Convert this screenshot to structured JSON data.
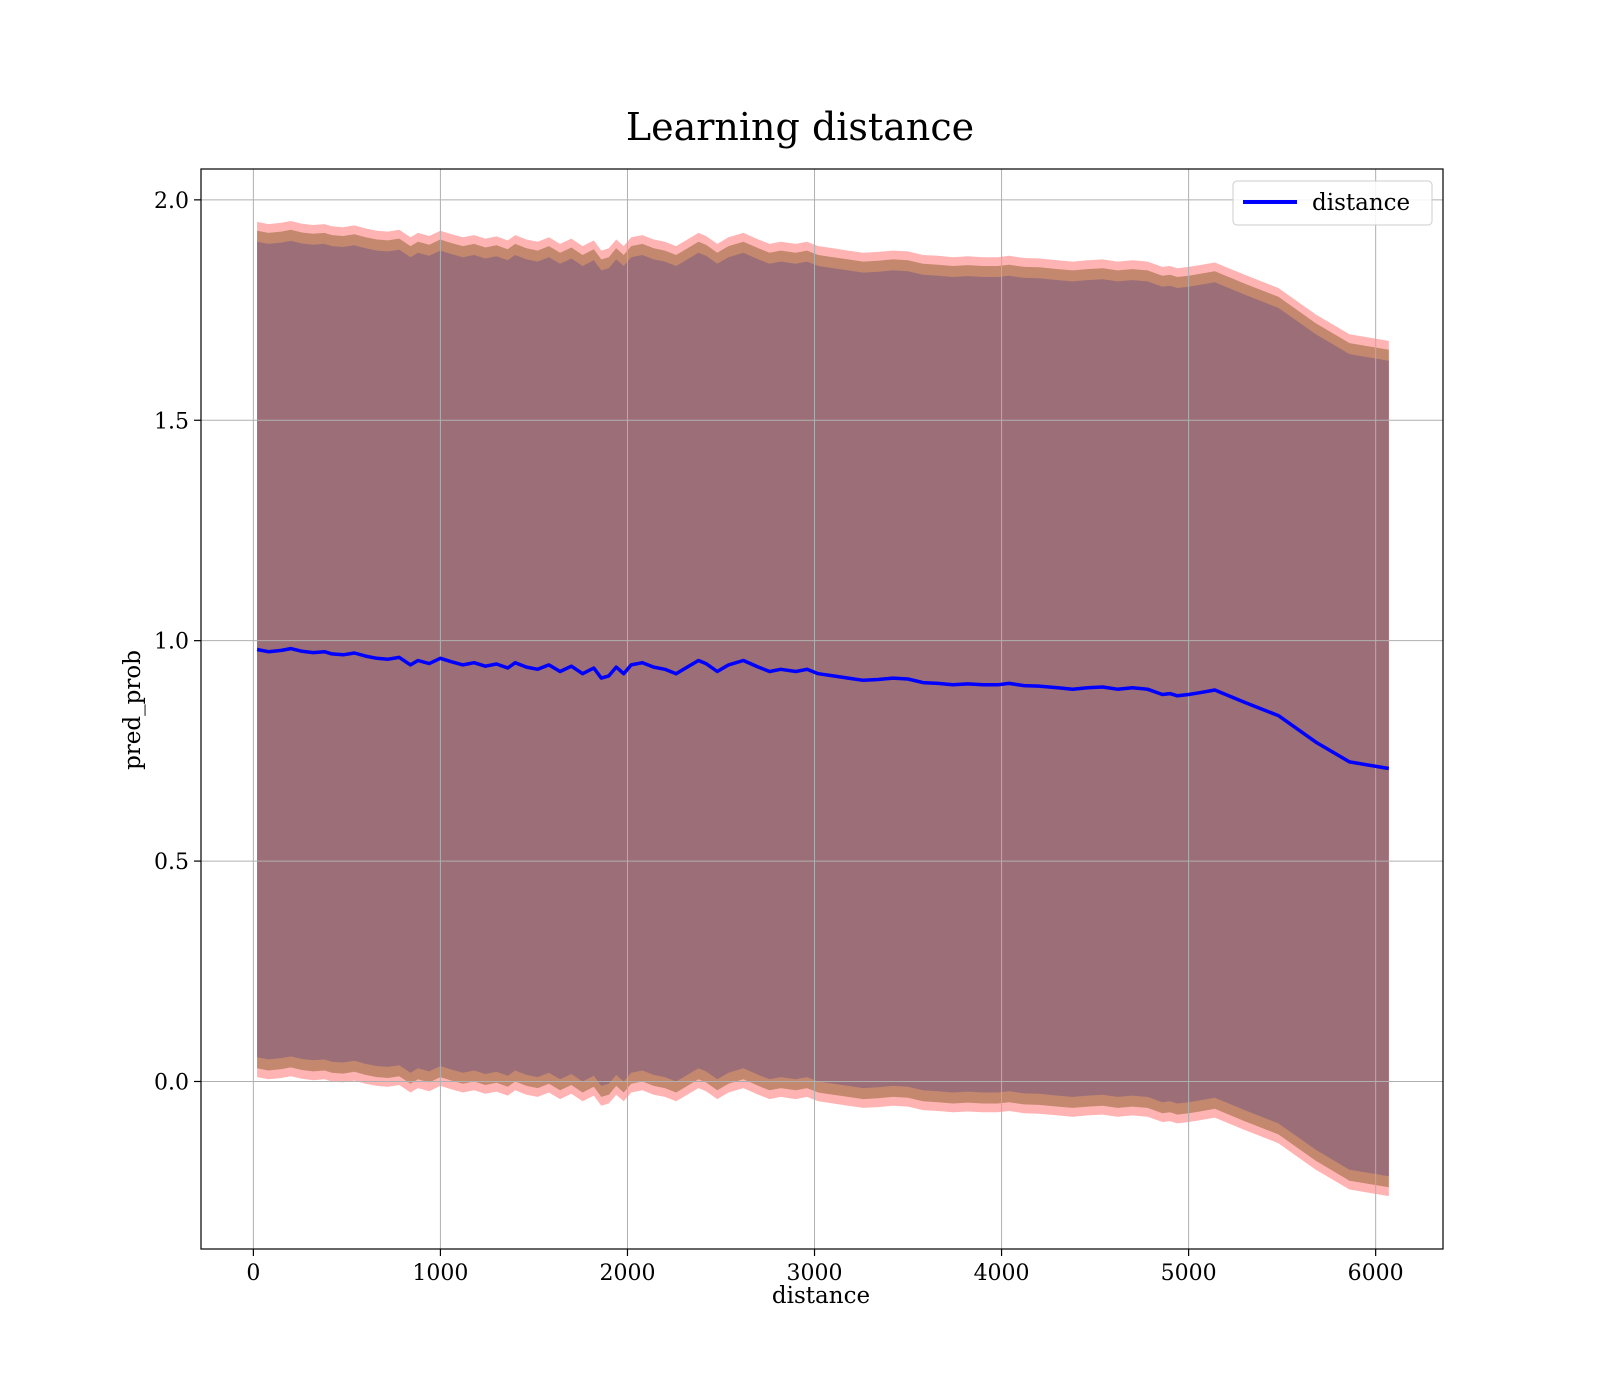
{
  "chart_data": {
    "type": "line",
    "title": "Learning distance",
    "xlabel": "distance",
    "ylabel": "pred_prob",
    "xlim": [
      -280,
      6360
    ],
    "ylim": [
      -0.38,
      2.07
    ],
    "xticks": [
      0,
      1000,
      2000,
      3000,
      4000,
      5000,
      6000
    ],
    "yticks": [
      0.0,
      0.5,
      1.0,
      1.5,
      2.0
    ],
    "xtick_labels": [
      "0",
      "1000",
      "2000",
      "3000",
      "4000",
      "5000",
      "6000"
    ],
    "ytick_labels": [
      "0.0",
      "0.5",
      "1.0",
      "1.5",
      "2.0"
    ],
    "grid": true,
    "legend": {
      "position": "top-right",
      "entries": [
        "distance"
      ]
    },
    "colors": {
      "line": "#0000ff",
      "band_outer": "#ff9999",
      "band_middle": "#b88060",
      "band_inner": "#9c6e78",
      "grid": "#b0b0b0"
    },
    "series": [
      {
        "name": "distance",
        "x": [
          20,
          80,
          150,
          200,
          260,
          320,
          380,
          420,
          480,
          540,
          600,
          660,
          720,
          780,
          840,
          880,
          940,
          1000,
          1060,
          1120,
          1180,
          1240,
          1300,
          1360,
          1400,
          1460,
          1520,
          1580,
          1640,
          1700,
          1760,
          1820,
          1860,
          1900,
          1940,
          1980,
          2020,
          2080,
          2140,
          2200,
          2260,
          2300,
          2380,
          2420,
          2480,
          2540,
          2620,
          2700,
          2760,
          2820,
          2900,
          2960,
          3020,
          3100,
          3180,
          3260,
          3340,
          3420,
          3500,
          3580,
          3660,
          3740,
          3820,
          3900,
          3980,
          4040,
          4120,
          4200,
          4300,
          4380,
          4460,
          4540,
          4620,
          4700,
          4780,
          4860,
          4900,
          4940,
          5000,
          5060,
          5140,
          5300,
          5480,
          5680,
          5860,
          6070
        ],
        "values": [
          0.98,
          0.975,
          0.978,
          0.982,
          0.976,
          0.973,
          0.975,
          0.97,
          0.968,
          0.972,
          0.965,
          0.96,
          0.958,
          0.962,
          0.945,
          0.955,
          0.948,
          0.96,
          0.952,
          0.945,
          0.95,
          0.942,
          0.947,
          0.938,
          0.95,
          0.94,
          0.935,
          0.945,
          0.93,
          0.942,
          0.925,
          0.938,
          0.915,
          0.92,
          0.94,
          0.925,
          0.945,
          0.95,
          0.94,
          0.935,
          0.925,
          0.935,
          0.955,
          0.948,
          0.93,
          0.945,
          0.955,
          0.94,
          0.93,
          0.935,
          0.93,
          0.935,
          0.925,
          0.92,
          0.915,
          0.91,
          0.912,
          0.915,
          0.913,
          0.905,
          0.903,
          0.9,
          0.902,
          0.9,
          0.9,
          0.903,
          0.898,
          0.897,
          0.893,
          0.89,
          0.893,
          0.895,
          0.89,
          0.893,
          0.89,
          0.878,
          0.88,
          0.875,
          0.878,
          0.882,
          0.888,
          0.86,
          0.83,
          0.77,
          0.725,
          0.71
        ]
      }
    ],
    "bands": [
      {
        "role": "outer",
        "half_width": 0.97
      },
      {
        "role": "middle",
        "half_width": 0.95
      },
      {
        "role": "inner",
        "half_width": 0.925
      }
    ]
  }
}
